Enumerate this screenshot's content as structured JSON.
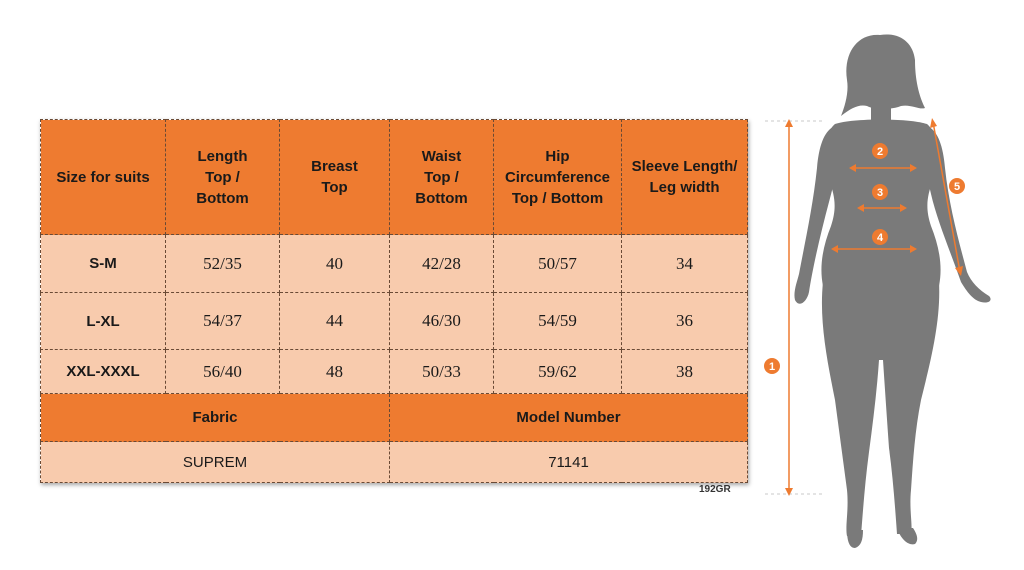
{
  "table": {
    "headers": [
      [
        "Size for suits"
      ],
      [
        "Length",
        "Top /",
        "Bottom"
      ],
      [
        "Breast",
        "Top"
      ],
      [
        "Waist",
        "Top /",
        "Bottom"
      ],
      [
        "Hip",
        "Circumference",
        "Top / Bottom"
      ],
      [
        "Sleeve Length/",
        "Leg width"
      ]
    ],
    "rows": [
      {
        "size": "S-M",
        "values": [
          "52/35",
          "40",
          "42/28",
          "50/57",
          "34"
        ]
      },
      {
        "size": "L-XL",
        "values": [
          "54/37",
          "44",
          "46/30",
          "54/59",
          "36"
        ]
      },
      {
        "size": "XXL-XXXL",
        "values": [
          "56/40",
          "48",
          "50/33",
          "59/62",
          "38"
        ]
      }
    ],
    "fabric_label": "Fabric",
    "model_label": "Model Number",
    "fabric_value": "SUPREM",
    "model_value": "71141"
  },
  "code": "192GR",
  "figure": {
    "markers": [
      "1",
      "2",
      "3",
      "4",
      "5"
    ],
    "colors": {
      "accent": "#ee7b30",
      "silhouette": "#7a7a7a",
      "cell": "#f8cbad"
    }
  }
}
